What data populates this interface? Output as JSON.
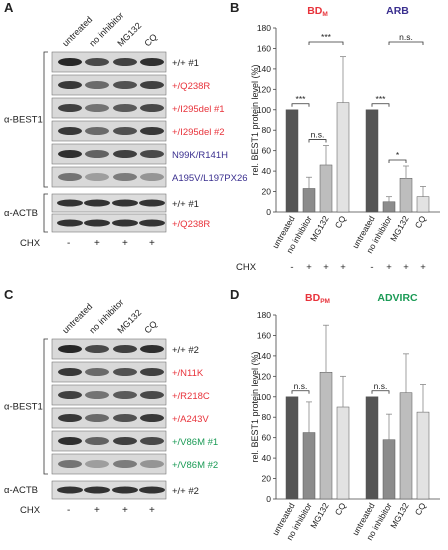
{
  "panels": {
    "A": {
      "letter": "A",
      "lanes": [
        "untreated",
        "no inhibitor",
        "MG132",
        "CQ"
      ],
      "group_label": "α-BEST1",
      "actb_label": "α-ACTB",
      "blots": [
        {
          "label": "+/+ #1",
          "color": "#222222"
        },
        {
          "label": "+/Q238R",
          "color": "#e8333b"
        },
        {
          "label": "+/I295del #1",
          "color": "#e8333b"
        },
        {
          "label": "+/I295del #2",
          "color": "#e8333b"
        },
        {
          "label": "N99K/R141H",
          "color": "#3a2f8f"
        },
        {
          "label": "A195V/L197PX26",
          "color": "#3a2f8f"
        }
      ],
      "actb_blots": [
        {
          "label": "+/+ #1",
          "color": "#222222"
        },
        {
          "label": "+/Q238R",
          "color": "#e8333b"
        }
      ],
      "cycloheximide_label": "CHX",
      "cycloheximide_marks": [
        "-",
        "+",
        "+",
        "+"
      ]
    },
    "C": {
      "letter": "C",
      "lanes": [
        "untreated",
        "no inhibitor",
        "MG132",
        "CQ"
      ],
      "group_label": "α-BEST1",
      "actb_label": "α-ACTB",
      "blots": [
        {
          "label": "+/+ #2",
          "color": "#222222"
        },
        {
          "label": "+/N11K",
          "color": "#e8333b"
        },
        {
          "label": "+/R218C",
          "color": "#e8333b"
        },
        {
          "label": "+/A243V",
          "color": "#e8333b"
        },
        {
          "label": "+/V86M #1",
          "color": "#1a9a55"
        },
        {
          "label": "+/V86M #2",
          "color": "#1a9a55"
        }
      ],
      "actb_blots": [
        {
          "label": "+/+ #2",
          "color": "#222222"
        }
      ],
      "cycloheximide_label": "CHX",
      "cycloheximide_marks": [
        "-",
        "+",
        "+",
        "+"
      ]
    }
  },
  "chart_data": [
    {
      "panel": "B",
      "type": "bar",
      "ylabel": "rel. BEST1 protein level (%)",
      "ylim": [
        0,
        180
      ],
      "yticks": [
        0,
        20,
        40,
        60,
        80,
        100,
        120,
        140,
        160,
        180
      ],
      "groups": [
        {
          "title": "BD",
          "title_sub": "M",
          "color": "#e8333b",
          "categories": [
            "untreated",
            "no inhibitor",
            "MG132",
            "CQ"
          ],
          "values": [
            100,
            23,
            46,
            107
          ],
          "errors": [
            0,
            11,
            19,
            45
          ]
        },
        {
          "title": "ARB",
          "title_sub": "",
          "color": "#3a2f8f",
          "categories": [
            "untreated",
            "no inhibitor",
            "MG132",
            "CQ"
          ],
          "values": [
            100,
            10,
            33,
            15
          ],
          "errors": [
            0,
            5,
            12,
            10
          ]
        }
      ],
      "bar_colors": [
        "#555555",
        "#8c8c8c",
        "#bdbdbd",
        "#e2e2e2"
      ],
      "significance": [
        {
          "group": 0,
          "from": 0,
          "to": 1,
          "label": "***"
        },
        {
          "group": 0,
          "from": 1,
          "to": 2,
          "label": "n.s."
        },
        {
          "group": 0,
          "from": 1,
          "to": 3,
          "label": "***"
        },
        {
          "group": 1,
          "from": 0,
          "to": 1,
          "label": "***"
        },
        {
          "group": 1,
          "from": 1,
          "to": 2,
          "label": "*"
        },
        {
          "group": 1,
          "from": 1,
          "to": 3,
          "label": "n.s."
        }
      ],
      "cycloheximide_label": "CHX",
      "cycloheximide_marks": [
        "-",
        "+",
        "+",
        "+"
      ]
    },
    {
      "panel": "D",
      "type": "bar",
      "ylabel": "rel. BEST1 protein level (%)",
      "ylim": [
        0,
        180
      ],
      "yticks": [
        0,
        20,
        40,
        60,
        80,
        100,
        120,
        140,
        160,
        180
      ],
      "groups": [
        {
          "title": "BD",
          "title_sub": "PM",
          "color": "#e8333b",
          "categories": [
            "untreated",
            "no inhibitor",
            "MG132",
            "CQ"
          ],
          "values": [
            100,
            65,
            124,
            90
          ],
          "errors": [
            0,
            30,
            46,
            30
          ]
        },
        {
          "title": "ADVIRC",
          "title_sub": "",
          "color": "#1a9a55",
          "categories": [
            "untreated",
            "no inhibitor",
            "MG132",
            "CQ"
          ],
          "values": [
            100,
            58,
            104,
            85
          ],
          "errors": [
            0,
            25,
            38,
            27
          ]
        }
      ],
      "bar_colors": [
        "#555555",
        "#8c8c8c",
        "#bdbdbd",
        "#e2e2e2"
      ],
      "significance": [
        {
          "group": 0,
          "from": 0,
          "to": 1,
          "label": "n.s."
        },
        {
          "group": 1,
          "from": 0,
          "to": 1,
          "label": "n.s."
        }
      ],
      "cycloheximide_label": "CHX",
      "cycloheximide_marks": [
        "-",
        "+",
        "+",
        "+"
      ]
    }
  ],
  "panel_letters": {
    "B": "B",
    "D": "D"
  }
}
